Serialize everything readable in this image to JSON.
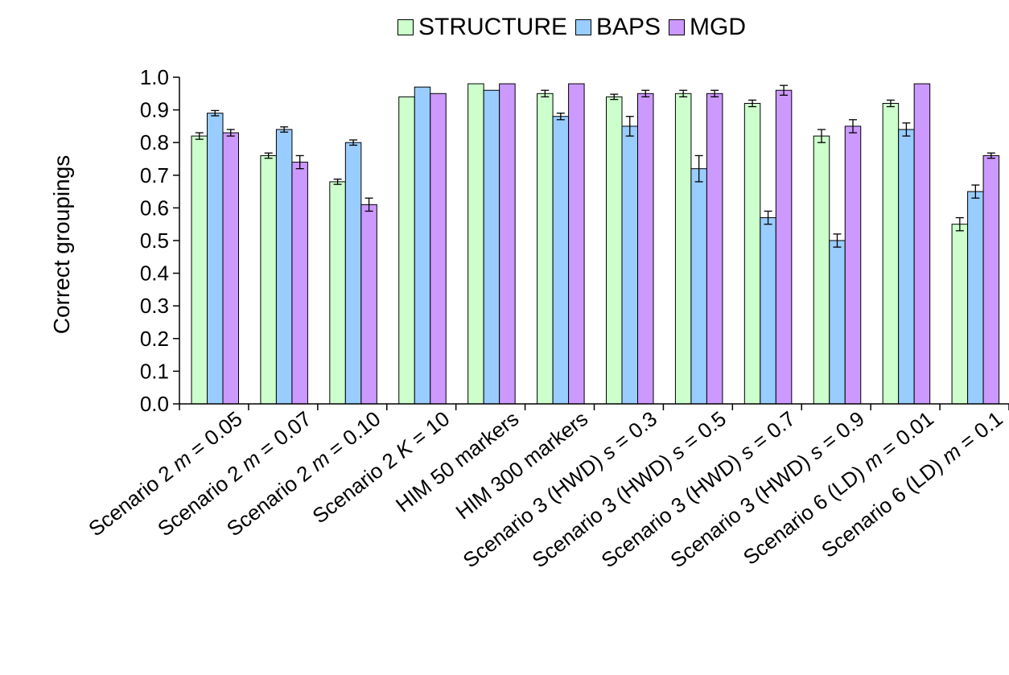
{
  "chart_data": {
    "type": "bar",
    "title": "",
    "xlabel": "",
    "ylabel": "Correct groupings",
    "ylim": [
      0.0,
      1.0
    ],
    "yticks": [
      "0.0",
      "0.1",
      "0.2",
      "0.3",
      "0.4",
      "0.5",
      "0.6",
      "0.7",
      "0.8",
      "0.9",
      "1.0"
    ],
    "grid": false,
    "legend_position": "top-center",
    "categories": [
      {
        "prefix": "Scenario 2 ",
        "var": "m",
        "suffix": " = 0.05"
      },
      {
        "prefix": "Scenario 2 ",
        "var": "m",
        "suffix": " = 0.07"
      },
      {
        "prefix": "Scenario 2 ",
        "var": "m",
        "suffix": " = 0.10"
      },
      {
        "prefix": "Scenario 2 ",
        "var": "K",
        "suffix": " = 10"
      },
      {
        "prefix": "HIM 50 markers",
        "var": "",
        "suffix": ""
      },
      {
        "prefix": "HIM 300 markers",
        "var": "",
        "suffix": ""
      },
      {
        "prefix": "Scenario 3 (HWD) ",
        "var": "s",
        "suffix": " = 0.3"
      },
      {
        "prefix": "Scenario 3 (HWD) ",
        "var": "s",
        "suffix": " = 0.5"
      },
      {
        "prefix": "Scenario 3 (HWD) ",
        "var": "s",
        "suffix": " = 0.7"
      },
      {
        "prefix": "Scenario 3 (HWD) ",
        "var": "s",
        "suffix": " = 0.9"
      },
      {
        "prefix": "Scenario 6 (LD) ",
        "var": "m",
        "suffix": " = 0.01"
      },
      {
        "prefix": "Scenario 6 (LD) ",
        "var": "m",
        "suffix": " = 0.1"
      }
    ],
    "series": [
      {
        "name": "STRUCTURE",
        "color": "#ccffcc",
        "values": [
          0.82,
          0.76,
          0.68,
          0.94,
          0.98,
          0.95,
          0.94,
          0.95,
          0.92,
          0.82,
          0.92,
          0.55
        ],
        "errors": [
          0.01,
          0.008,
          0.008,
          0,
          0,
          0.01,
          0.008,
          0.01,
          0.01,
          0.02,
          0.01,
          0.02
        ]
      },
      {
        "name": "BAPS",
        "color": "#99ccff",
        "values": [
          0.89,
          0.84,
          0.8,
          0.97,
          0.96,
          0.88,
          0.85,
          0.72,
          0.57,
          0.5,
          0.84,
          0.65
        ],
        "errors": [
          0.008,
          0.008,
          0.008,
          0,
          0,
          0.01,
          0.03,
          0.04,
          0.02,
          0.02,
          0.02,
          0.02
        ]
      },
      {
        "name": "MGD",
        "color": "#cc99ff",
        "values": [
          0.83,
          0.74,
          0.61,
          0.95,
          0.98,
          0.98,
          0.95,
          0.95,
          0.96,
          0.85,
          0.98,
          0.76
        ],
        "errors": [
          0.01,
          0.02,
          0.02,
          0,
          0,
          0,
          0.01,
          0.01,
          0.015,
          0.02,
          0,
          0.008
        ]
      }
    ]
  }
}
